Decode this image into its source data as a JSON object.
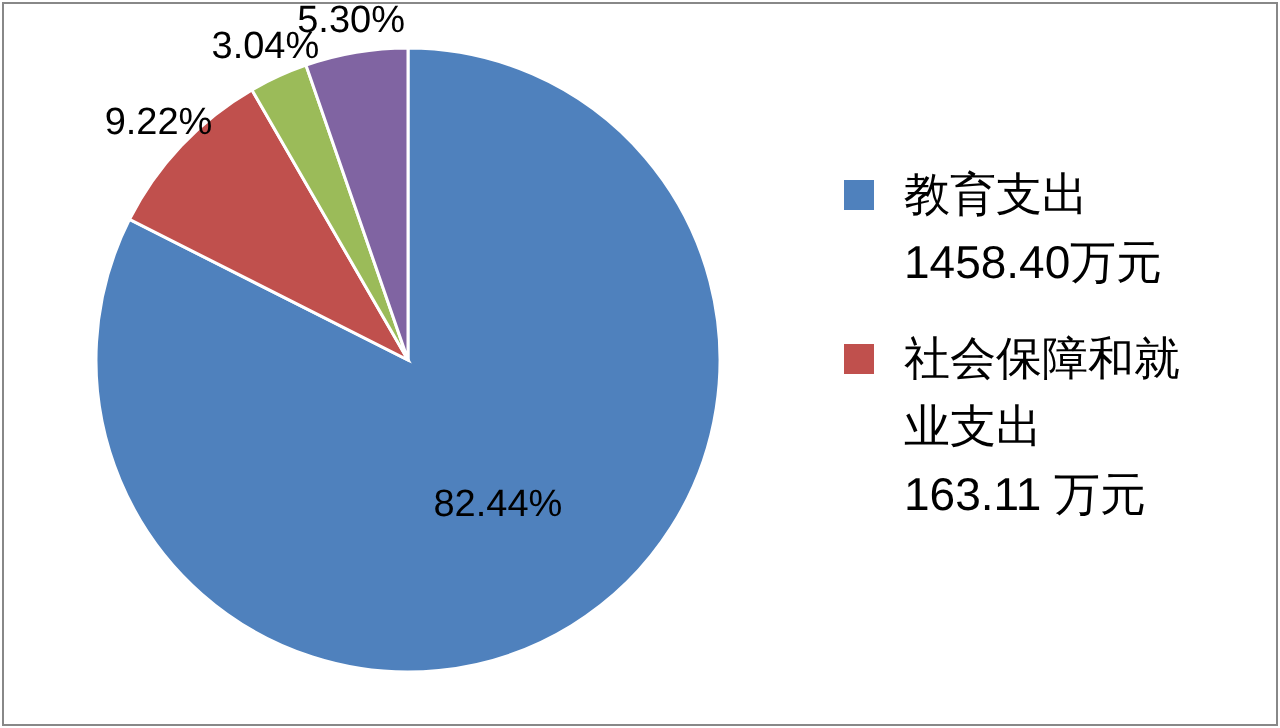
{
  "chart_data": {
    "type": "pie",
    "categories": [
      "教育支出 1458.40万元",
      "社会保障和就业支出 163.11 万元",
      null,
      null
    ],
    "values": [
      82.44,
      9.22,
      3.04,
      5.3
    ],
    "colors": [
      "#4f81bd",
      "#c0504d",
      "#9bbb59",
      "#8064a2"
    ],
    "value_labels": [
      "82.44%",
      "9.22%",
      "3.04%",
      "5.30%"
    ],
    "legend": "right"
  }
}
